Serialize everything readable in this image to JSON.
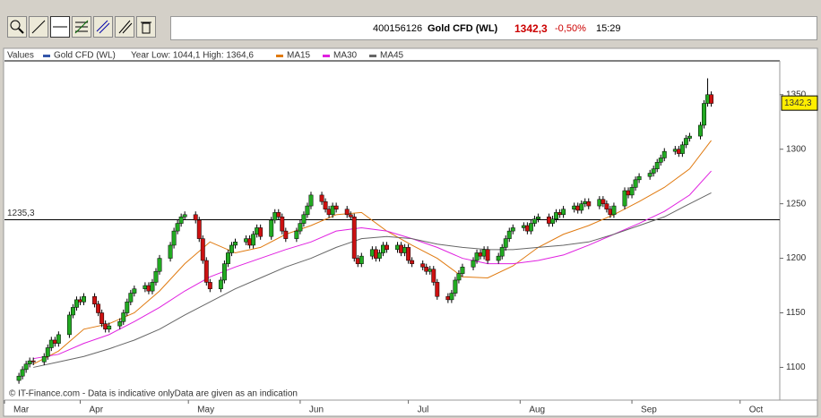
{
  "header": {
    "id": "400156126",
    "name": "Gold CFD (WL)",
    "price": "1342,3",
    "change": "-0,50%",
    "time": "15:29"
  },
  "chart_data": {
    "type": "candlestick",
    "legend_title": "Values",
    "range_note": "Year Low: 1044,1 High: 1364,6",
    "footer": "© IT-Finance.com - Data is indicative onlyData are given as an indication",
    "xlim": [
      10,
      225
    ],
    "xticks": [
      {
        "value": 10,
        "label": "Mar"
      },
      {
        "value": 31,
        "label": "Apr"
      },
      {
        "value": 61,
        "label": "May"
      },
      {
        "value": 92,
        "label": "Jun"
      },
      {
        "value": 122,
        "label": "Jul"
      },
      {
        "value": 153,
        "label": "Aug"
      },
      {
        "value": 184,
        "label": "Sep"
      },
      {
        "value": 214,
        "label": "Oct"
      }
    ],
    "ylim": [
      1070,
      1381
    ],
    "yticks": [
      1100,
      1150,
      1200,
      1250,
      1300,
      1350
    ],
    "grid": false,
    "reference_line": {
      "value": 1235.3,
      "label": "1235,3"
    },
    "last_price": {
      "value": 1342.3,
      "label": "1342,3"
    },
    "series": [
      {
        "name": "Gold CFD (WL)",
        "color": "#3355aa",
        "up_color": "#22aa22",
        "down_color": "#cc1111",
        "x": [
          14,
          15,
          16,
          17,
          18,
          21,
          22,
          23,
          24,
          25,
          28,
          29,
          30,
          31,
          32,
          35,
          36,
          37,
          38,
          39,
          42,
          43,
          44,
          45,
          46,
          49,
          50,
          51,
          52,
          53,
          56,
          57,
          58,
          59,
          60,
          63,
          64,
          65,
          66,
          67,
          70,
          71,
          72,
          73,
          74,
          77,
          78,
          79,
          80,
          81,
          84,
          85,
          86,
          87,
          88,
          91,
          92,
          93,
          94,
          95,
          98,
          99,
          100,
          101,
          102,
          105,
          106,
          107,
          108,
          109,
          112,
          113,
          114,
          115,
          116,
          119,
          120,
          121,
          122,
          123,
          126,
          127,
          128,
          129,
          130,
          133,
          134,
          135,
          136,
          137,
          140,
          141,
          142,
          143,
          144,
          147,
          148,
          149,
          150,
          151,
          154,
          155,
          156,
          157,
          158,
          161,
          162,
          163,
          164,
          165,
          168,
          169,
          170,
          171,
          172,
          175,
          176,
          177,
          178,
          179,
          182,
          183,
          184,
          185,
          186,
          189,
          190,
          191,
          192,
          193,
          196,
          197,
          198,
          199,
          200,
          203,
          204,
          205,
          206
        ],
        "open": [
          1088,
          1092,
          1098,
          1103,
          1106,
          1105,
          1110,
          1118,
          1125,
          1122,
          1130,
          1148,
          1155,
          1162,
          1160,
          1165,
          1158,
          1150,
          1140,
          1135,
          1138,
          1142,
          1150,
          1160,
          1168,
          1172,
          1175,
          1170,
          1178,
          1188,
          1200,
          1212,
          1225,
          1232,
          1238,
          1240,
          1235,
          1218,
          1198,
          1178,
          1172,
          1180,
          1195,
          1205,
          1212,
          1215,
          1218,
          1212,
          1222,
          1228,
          1220,
          1235,
          1242,
          1238,
          1225,
          1218,
          1225,
          1232,
          1240,
          1248,
          1258,
          1252,
          1245,
          1240,
          1248,
          1245,
          1240,
          1238,
          1200,
          1195,
          1202,
          1208,
          1200,
          1205,
          1212,
          1208,
          1212,
          1205,
          1210,
          1198,
          1195,
          1192,
          1188,
          1190,
          1178,
          1165,
          1162,
          1168,
          1180,
          1186,
          1192,
          1198,
          1205,
          1202,
          1208,
          1198,
          1202,
          1210,
          1218,
          1225,
          1228,
          1230,
          1225,
          1232,
          1236,
          1238,
          1232,
          1236,
          1242,
          1240,
          1245,
          1248,
          1244,
          1250,
          1252,
          1248,
          1254,
          1250,
          1245,
          1240,
          1248,
          1262,
          1258,
          1265,
          1272,
          1275,
          1278,
          1282,
          1288,
          1292,
          1298,
          1300,
          1296,
          1304,
          1310,
          1312,
          1322,
          1342,
          1350
        ],
        "high": [
          1095,
          1101,
          1106,
          1109,
          1109,
          1113,
          1121,
          1128,
          1128,
          1133,
          1151,
          1158,
          1165,
          1165,
          1168,
          1168,
          1161,
          1153,
          1143,
          1141,
          1145,
          1153,
          1163,
          1171,
          1175,
          1178,
          1178,
          1181,
          1191,
          1203,
          1215,
          1228,
          1235,
          1241,
          1243,
          1243,
          1238,
          1221,
          1201,
          1181,
          1183,
          1198,
          1208,
          1215,
          1218,
          1221,
          1221,
          1225,
          1231,
          1231,
          1238,
          1245,
          1245,
          1241,
          1228,
          1228,
          1235,
          1243,
          1251,
          1261,
          1261,
          1255,
          1248,
          1251,
          1251,
          1248,
          1243,
          1241,
          1203,
          1205,
          1211,
          1211,
          1208,
          1215,
          1215,
          1215,
          1215,
          1213,
          1213,
          1201,
          1198,
          1195,
          1193,
          1193,
          1181,
          1168,
          1171,
          1183,
          1189,
          1195,
          1201,
          1208,
          1208,
          1211,
          1211,
          1205,
          1213,
          1221,
          1228,
          1231,
          1233,
          1233,
          1235,
          1239,
          1241,
          1241,
          1239,
          1245,
          1245,
          1248,
          1251,
          1251,
          1253,
          1255,
          1255,
          1257,
          1257,
          1253,
          1248,
          1251,
          1265,
          1265,
          1268,
          1275,
          1278,
          1281,
          1285,
          1291,
          1295,
          1301,
          1303,
          1303,
          1307,
          1313,
          1315,
          1325,
          1345,
          1365,
          1353
        ],
        "low": [
          1085,
          1089,
          1095,
          1100,
          1102,
          1102,
          1107,
          1115,
          1119,
          1119,
          1127,
          1145,
          1152,
          1157,
          1157,
          1155,
          1147,
          1137,
          1132,
          1132,
          1135,
          1139,
          1147,
          1157,
          1165,
          1169,
          1167,
          1167,
          1175,
          1185,
          1197,
          1209,
          1222,
          1229,
          1235,
          1232,
          1215,
          1195,
          1175,
          1169,
          1169,
          1177,
          1192,
          1202,
          1209,
          1212,
          1209,
          1209,
          1219,
          1217,
          1217,
          1232,
          1235,
          1222,
          1215,
          1215,
          1222,
          1229,
          1237,
          1245,
          1249,
          1242,
          1237,
          1237,
          1242,
          1237,
          1235,
          1197,
          1192,
          1192,
          1199,
          1197,
          1197,
          1202,
          1205,
          1205,
          1202,
          1202,
          1195,
          1192,
          1189,
          1185,
          1185,
          1175,
          1162,
          1159,
          1159,
          1165,
          1177,
          1183,
          1189,
          1195,
          1199,
          1199,
          1195,
          1195,
          1199,
          1207,
          1215,
          1222,
          1225,
          1222,
          1222,
          1229,
          1233,
          1229,
          1229,
          1233,
          1237,
          1237,
          1242,
          1241,
          1241,
          1247,
          1245,
          1245,
          1247,
          1242,
          1237,
          1237,
          1245,
          1255,
          1255,
          1262,
          1269,
          1272,
          1275,
          1279,
          1285,
          1289,
          1295,
          1293,
          1293,
          1301,
          1307,
          1309,
          1319,
          1339,
          1339
        ],
        "close": [
          1092,
          1098,
          1103,
          1106,
          1105,
          1110,
          1118,
          1125,
          1122,
          1130,
          1148,
          1155,
          1162,
          1160,
          1165,
          1158,
          1150,
          1140,
          1135,
          1138,
          1142,
          1150,
          1160,
          1168,
          1172,
          1175,
          1170,
          1178,
          1188,
          1200,
          1212,
          1225,
          1232,
          1238,
          1240,
          1235,
          1218,
          1198,
          1178,
          1172,
          1180,
          1195,
          1205,
          1212,
          1215,
          1218,
          1212,
          1222,
          1228,
          1220,
          1235,
          1242,
          1238,
          1225,
          1218,
          1225,
          1232,
          1240,
          1248,
          1258,
          1252,
          1245,
          1240,
          1248,
          1245,
          1240,
          1238,
          1200,
          1195,
          1202,
          1208,
          1200,
          1205,
          1212,
          1208,
          1212,
          1205,
          1210,
          1198,
          1195,
          1192,
          1188,
          1190,
          1178,
          1165,
          1162,
          1168,
          1180,
          1186,
          1192,
          1198,
          1205,
          1202,
          1208,
          1198,
          1202,
          1210,
          1218,
          1225,
          1228,
          1230,
          1225,
          1232,
          1236,
          1238,
          1232,
          1236,
          1242,
          1240,
          1245,
          1248,
          1244,
          1250,
          1252,
          1248,
          1254,
          1250,
          1245,
          1240,
          1248,
          1262,
          1258,
          1265,
          1272,
          1275,
          1278,
          1282,
          1288,
          1292,
          1298,
          1300,
          1296,
          1304,
          1310,
          1312,
          1322,
          1342,
          1350,
          1342
        ]
      },
      {
        "name": "MA15",
        "color": "#e07a10",
        "x": [
          18,
          25,
          32,
          39,
          46,
          53,
          60,
          67,
          74,
          81,
          88,
          95,
          102,
          109,
          116,
          123,
          130,
          137,
          144,
          151,
          158,
          165,
          172,
          179,
          186,
          193,
          200,
          206
        ],
        "values": [
          1103,
          1115,
          1135,
          1140,
          1150,
          1170,
          1195,
          1215,
          1205,
          1210,
          1222,
          1230,
          1240,
          1242,
          1225,
          1212,
          1200,
          1183,
          1182,
          1193,
          1210,
          1222,
          1230,
          1240,
          1252,
          1265,
          1282,
          1308
        ]
      },
      {
        "name": "MA30",
        "color": "#e020e0",
        "x": [
          18,
          25,
          32,
          39,
          46,
          53,
          60,
          67,
          74,
          81,
          88,
          95,
          102,
          109,
          116,
          123,
          130,
          137,
          144,
          151,
          158,
          165,
          172,
          179,
          186,
          193,
          200,
          206
        ],
        "values": [
          1108,
          1112,
          1122,
          1130,
          1142,
          1155,
          1170,
          1183,
          1192,
          1200,
          1208,
          1215,
          1225,
          1228,
          1225,
          1218,
          1210,
          1200,
          1195,
          1195,
          1198,
          1203,
          1212,
          1222,
          1232,
          1243,
          1258,
          1280
        ]
      },
      {
        "name": "MA45",
        "color": "#666666",
        "x": [
          18,
          25,
          32,
          39,
          46,
          53,
          60,
          67,
          74,
          81,
          88,
          95,
          102,
          109,
          116,
          123,
          130,
          137,
          144,
          151,
          158,
          165,
          172,
          179,
          186,
          193,
          200,
          206
        ],
        "values": [
          1100,
          1105,
          1110,
          1117,
          1125,
          1135,
          1148,
          1160,
          1172,
          1182,
          1192,
          1200,
          1210,
          1218,
          1220,
          1218,
          1213,
          1210,
          1208,
          1208,
          1210,
          1212,
          1215,
          1222,
          1230,
          1238,
          1250,
          1260
        ]
      }
    ]
  }
}
